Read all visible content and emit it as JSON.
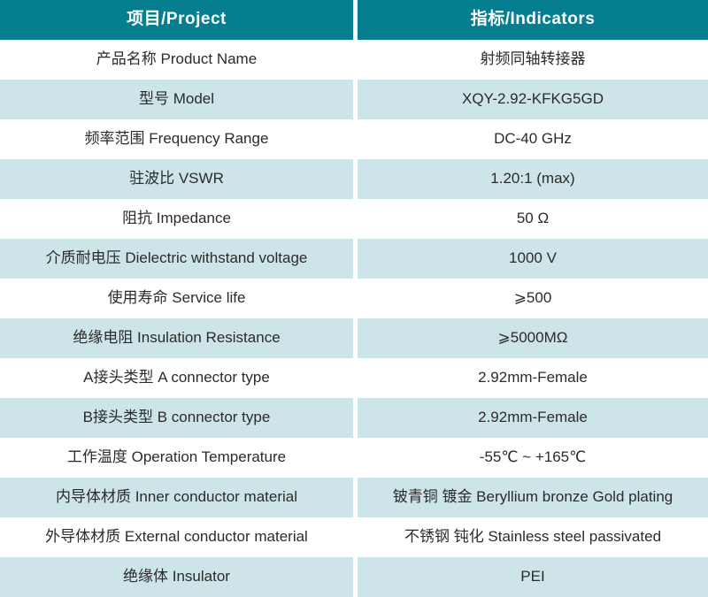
{
  "colors": {
    "header_bg": "#057F90",
    "row_light_bg": "#CDE4E8",
    "row_white_bg": "#FFFFFF",
    "header_text": "#FFFFFF",
    "body_text": "#2B2B2B",
    "divider": "#FFFFFF"
  },
  "table": {
    "header": {
      "project": "项目/Project",
      "indicators": "指标/Indicators"
    },
    "rows": [
      {
        "project": "产品名称 Product Name",
        "indicator": "射频同轴转接器"
      },
      {
        "project": "型号 Model",
        "indicator": "XQY-2.92-KFKG5GD"
      },
      {
        "project": "频率范围 Frequency Range",
        "indicator": "DC-40 GHz"
      },
      {
        "project": "驻波比 VSWR",
        "indicator": "1.20:1 (max)"
      },
      {
        "project": "阻抗 Impedance",
        "indicator": "50 Ω"
      },
      {
        "project": "介质耐电压 Dielectric withstand voltage",
        "indicator": "1000 V"
      },
      {
        "project": "使用寿命 Service life",
        "indicator": "⩾500"
      },
      {
        "project": "绝缘电阻 Insulation Resistance",
        "indicator": "⩾5000MΩ"
      },
      {
        "project": "A接头类型 A connector type",
        "indicator": "2.92mm-Female"
      },
      {
        "project": "B接头类型 B connector type",
        "indicator": "2.92mm-Female"
      },
      {
        "project": "工作温度 Operation Temperature",
        "indicator": "-55℃ ~ +165℃"
      },
      {
        "project": "内导体材质 Inner conductor material",
        "indicator": "铍青铜 镀金 Beryllium bronze Gold plating"
      },
      {
        "project": "外导体材质 External conductor material",
        "indicator": "不锈钢 钝化 Stainless steel passivated"
      },
      {
        "project": "绝缘体 Insulator",
        "indicator": "PEI"
      }
    ]
  }
}
